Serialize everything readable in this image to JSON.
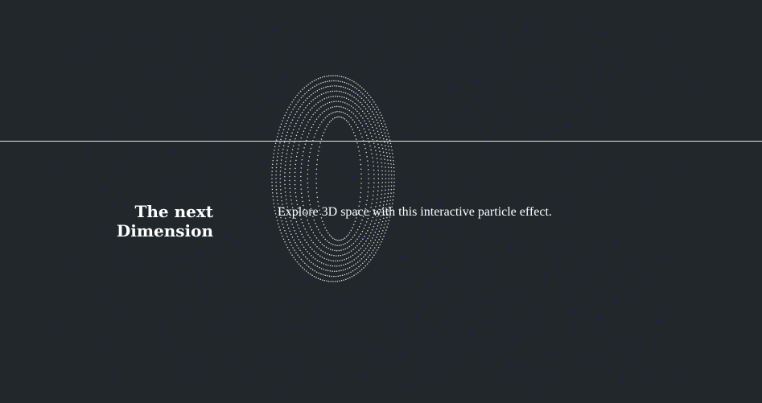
{
  "hero": {
    "title_line1": "The next",
    "title_line2": "Dimension",
    "tagline": "Explore 3D space with this interactive particle effect."
  },
  "colors": {
    "background": "#21272a",
    "ring_particles": "#ffffff",
    "scatter_particles": "#1a1f8c",
    "horizon_line": "#e8e8e8",
    "text": "#ffffff"
  }
}
